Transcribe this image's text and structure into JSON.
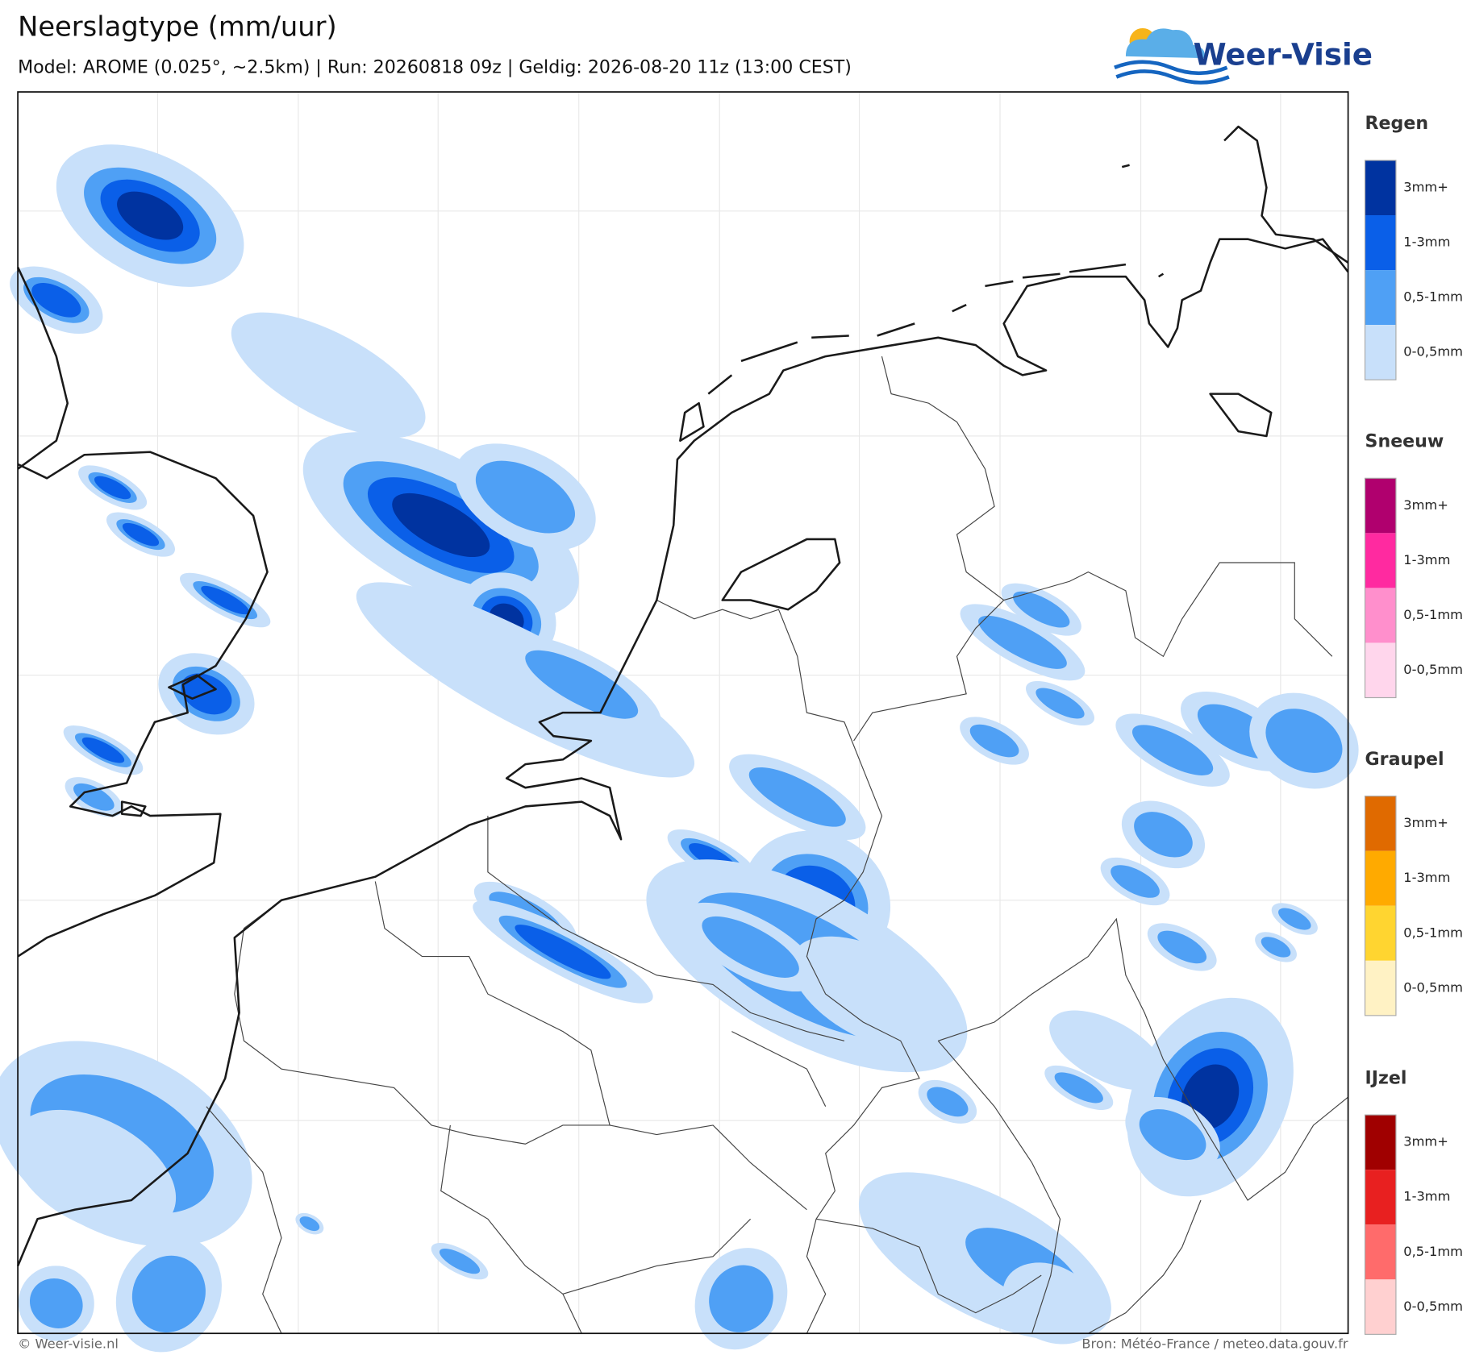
{
  "header": {
    "title": "Neerslagtype (mm/uur)",
    "subtitle": "Model: AROME (0.025°, ~2.5km)  |  Run: 20260818 09z  |  Geldig: 2026-08-20 11z (13:00 CEST)",
    "logo": "Weer-Visie"
  },
  "legend": {
    "groups": [
      {
        "title": "Regen",
        "items": [
          {
            "label": "3mm+",
            "color": "#0033a0"
          },
          {
            "label": "1-3mm",
            "color": "#0a5fe8"
          },
          {
            "label": "0,5-1mm",
            "color": "#4fa0f5"
          },
          {
            "label": "0-0,5mm",
            "color": "#c8e0fa"
          }
        ]
      },
      {
        "title": "Sneeuw",
        "items": [
          {
            "label": "3mm+",
            "color": "#b0006e"
          },
          {
            "label": "1-3mm",
            "color": "#ff2aa0"
          },
          {
            "label": "0,5-1mm",
            "color": "#ff8fcc"
          },
          {
            "label": "0-0,5mm",
            "color": "#ffd6ec"
          }
        ]
      },
      {
        "title": "Graupel",
        "items": [
          {
            "label": "3mm+",
            "color": "#e06a00"
          },
          {
            "label": "1-3mm",
            "color": "#ffaa00"
          },
          {
            "label": "0,5-1mm",
            "color": "#ffd530"
          },
          {
            "label": "0-0,5mm",
            "color": "#fff2c4"
          }
        ]
      },
      {
        "title": "IJzel",
        "items": [
          {
            "label": "3mm+",
            "color": "#a00000"
          },
          {
            "label": "1-3mm",
            "color": "#e82020"
          },
          {
            "label": "0,5-1mm",
            "color": "#ff6b6b"
          },
          {
            "label": "0-0,5mm",
            "color": "#ffd0d0"
          }
        ]
      }
    ]
  },
  "footer": {
    "copyright": "© Weer-visie.nl",
    "source": "Bron: Météo-France / meteo.data.gouv.fr"
  }
}
